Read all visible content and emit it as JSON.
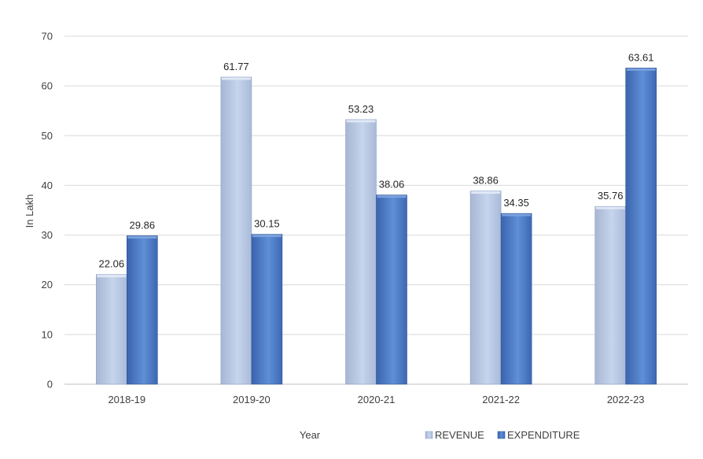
{
  "chart_data": {
    "type": "bar",
    "categories": [
      "2018-19",
      "2019-20",
      "2020-21",
      "2021-22",
      "2022-23"
    ],
    "series": [
      {
        "name": "REVENUE",
        "values": [
          22.06,
          61.77,
          53.23,
          38.86,
          35.76
        ],
        "color": "#b4c6e7"
      },
      {
        "name": "EXPENDITURE",
        "values": [
          29.86,
          30.15,
          38.06,
          34.35,
          63.61
        ],
        "color": "#4472c4"
      }
    ],
    "data_labels": {
      "REVENUE": [
        "22.06",
        "61.77",
        "53.23",
        "38.86",
        "35.76"
      ],
      "EXPENDITURE": [
        "29.86",
        "30.15",
        "38.06",
        "34.35",
        "63.61"
      ]
    },
    "xlabel": "Year",
    "ylabel": "In Lakh",
    "ylim": [
      0,
      70
    ],
    "yticks": [
      "0",
      "10",
      "20",
      "30",
      "40",
      "50",
      "60",
      "70"
    ],
    "grid": true,
    "legend_position": "bottom"
  }
}
